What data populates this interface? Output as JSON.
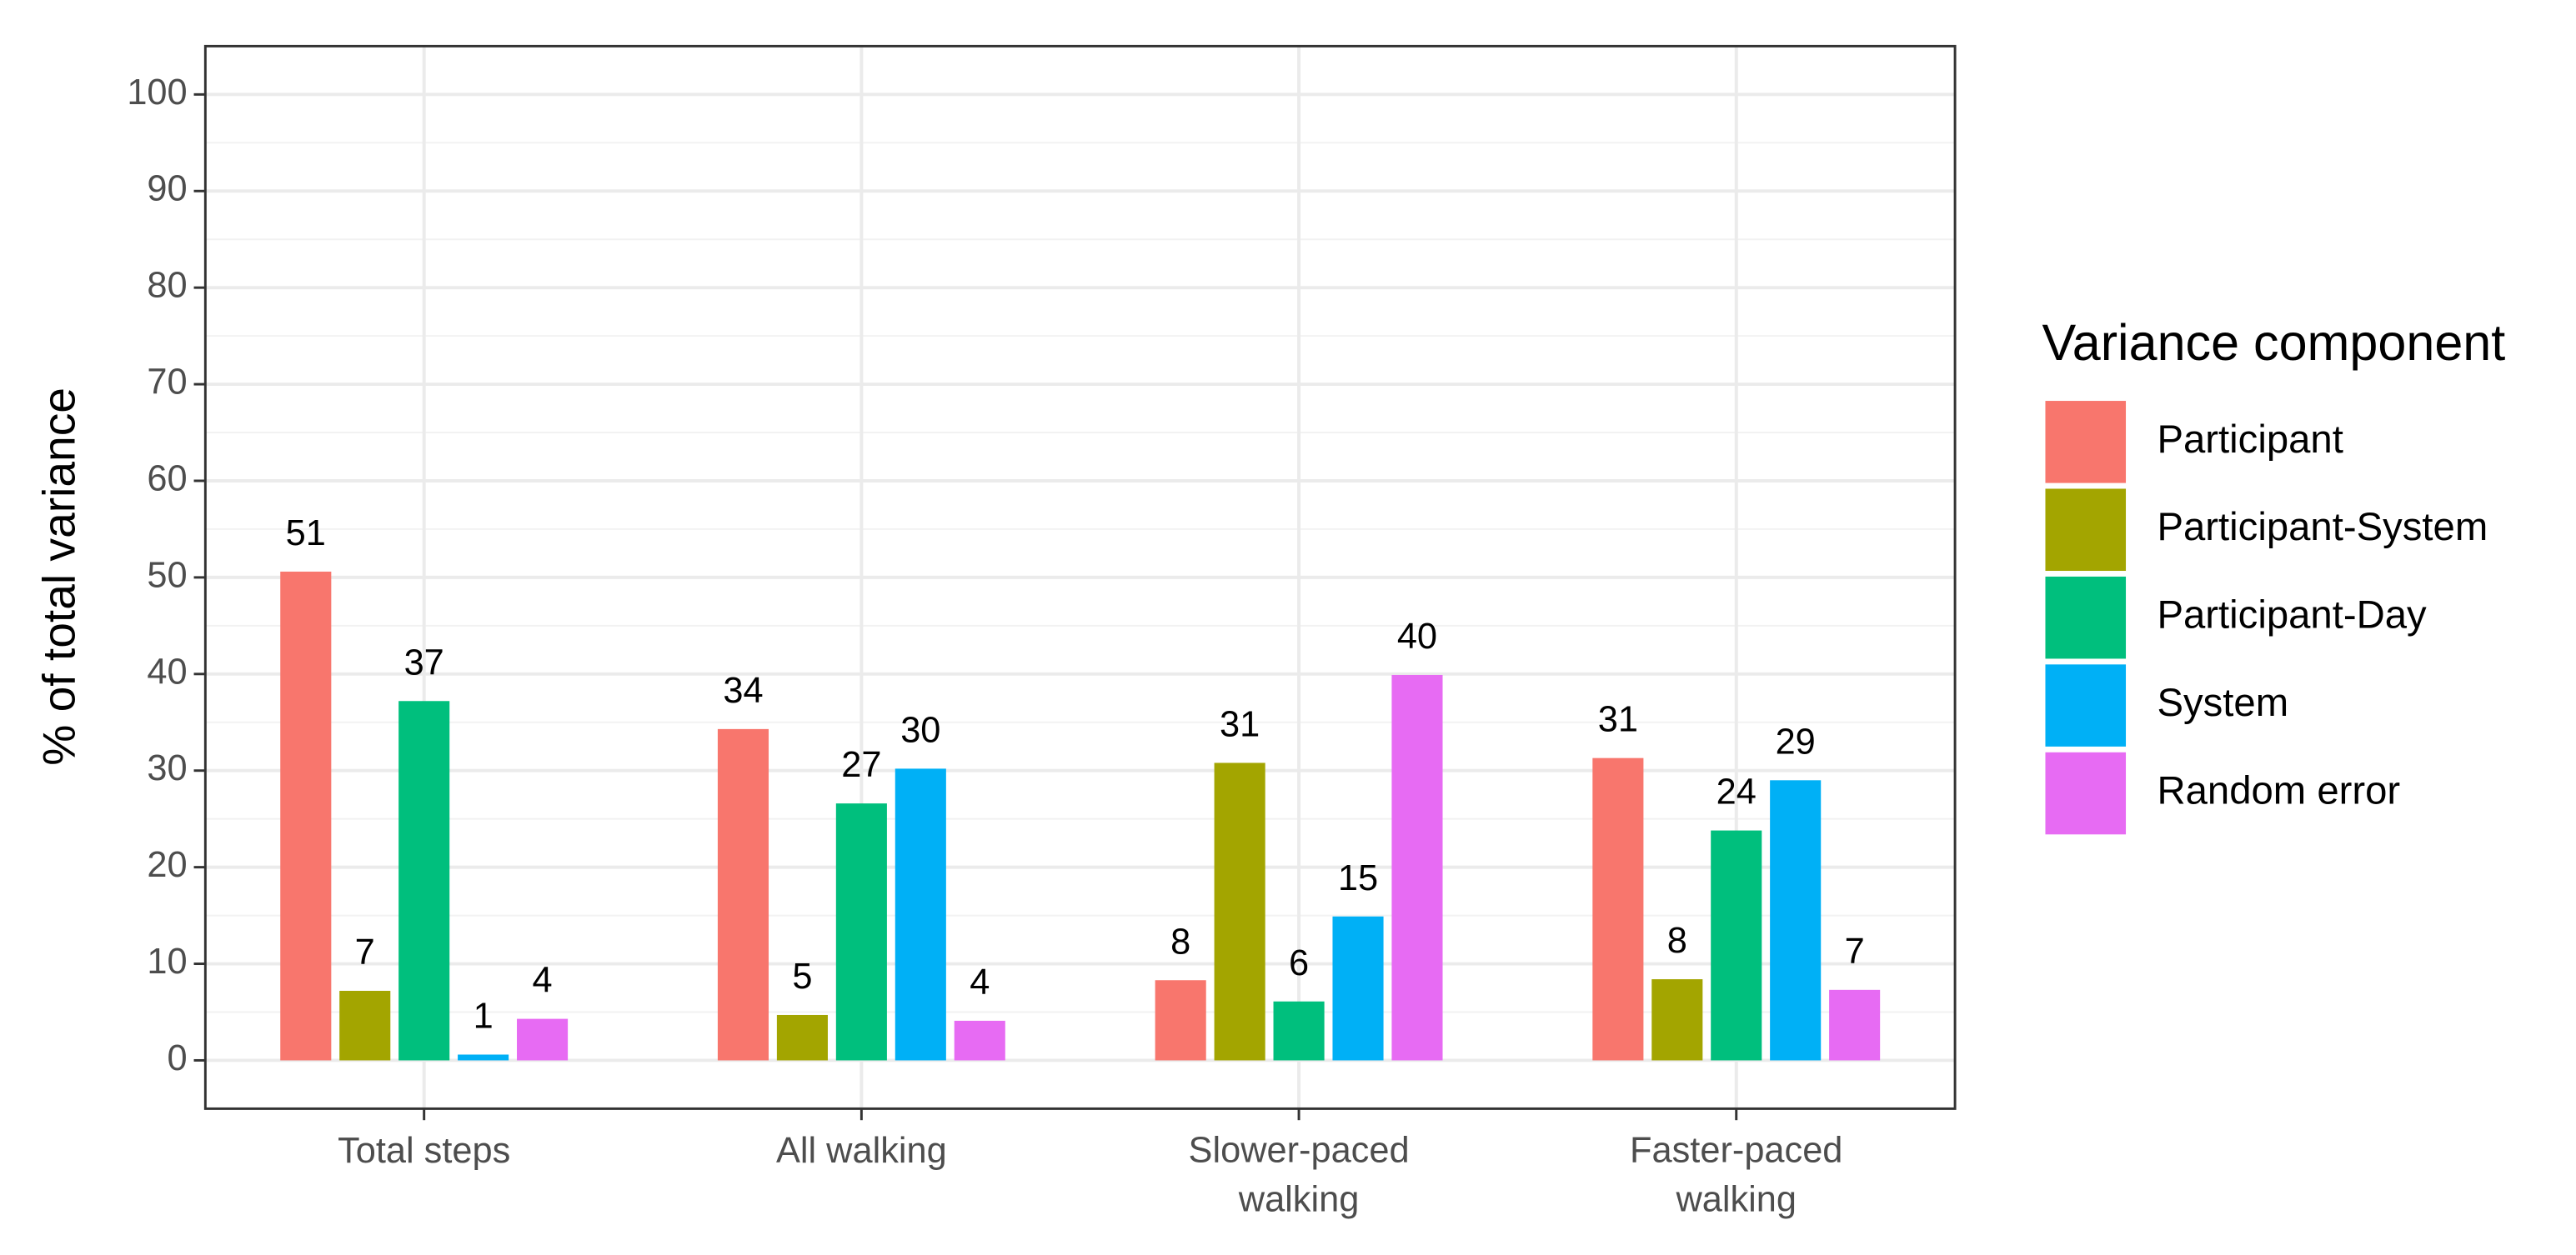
{
  "chart_data": {
    "type": "bar",
    "y_label": "% of total variance",
    "legend_title": "Variance component",
    "categories": [
      "Total steps",
      "All walking",
      "Slower-paced\nwalking",
      "Faster-paced\nwalking"
    ],
    "series": [
      {
        "name": "Participant",
        "color": "#F8766D",
        "values": [
          50.6,
          34.3,
          8.3,
          31.3
        ],
        "value_labels": [
          "51",
          "34",
          "8",
          "31"
        ]
      },
      {
        "name": "Participant-System",
        "color": "#A3A500",
        "values": [
          7.2,
          4.7,
          30.8,
          8.4
        ],
        "value_labels": [
          "7",
          "5",
          "31",
          "8"
        ]
      },
      {
        "name": "Participant-Day",
        "color": "#00BF7D",
        "values": [
          37.2,
          26.6,
          6.1,
          23.8
        ],
        "value_labels": [
          "37",
          "27",
          "6",
          "24"
        ]
      },
      {
        "name": "System",
        "color": "#00B0F6",
        "values": [
          0.6,
          30.2,
          14.9,
          29.0
        ],
        "value_labels": [
          "1",
          "30",
          "15",
          "29"
        ]
      },
      {
        "name": "Random error",
        "color": "#E76BF3",
        "values": [
          4.3,
          4.1,
          39.9,
          7.3
        ],
        "value_labels": [
          "4",
          "4",
          "40",
          "7"
        ]
      }
    ],
    "ylim": [
      -5,
      105
    ],
    "yticks": [
      0,
      10,
      20,
      30,
      40,
      50,
      60,
      70,
      80,
      90,
      100
    ],
    "grid": true,
    "legend": "right"
  }
}
